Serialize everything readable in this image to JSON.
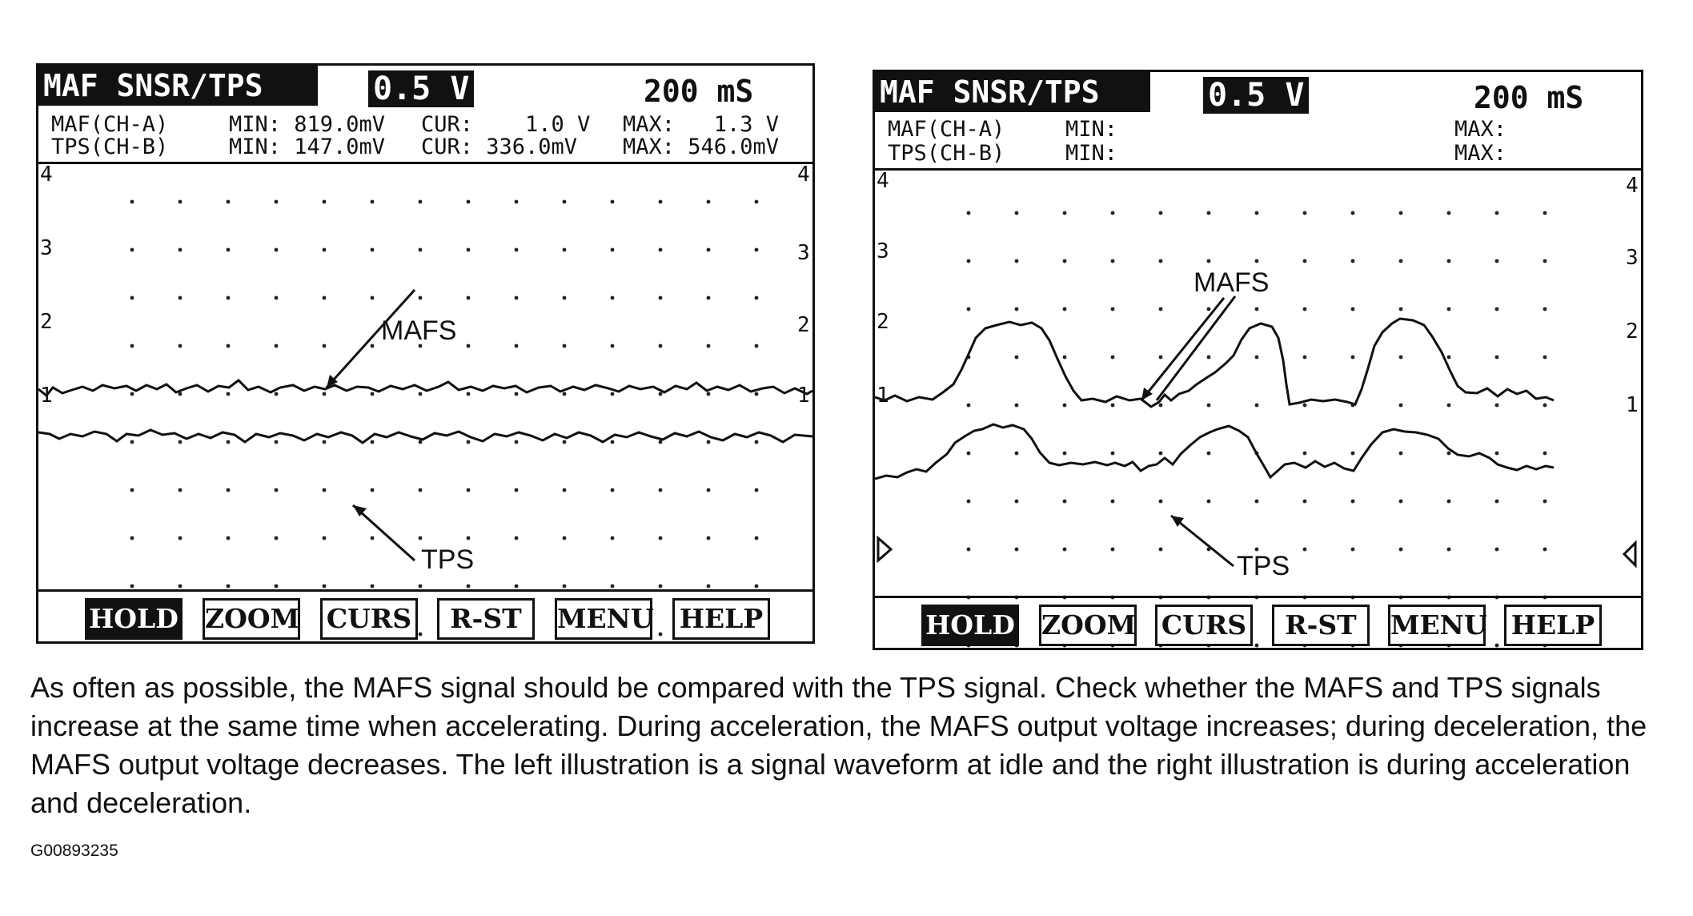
{
  "panels": [
    {
      "title": "MAF SNSR/TPS",
      "range": "0.5 V",
      "timebase": "200 mS",
      "rows": [
        {
          "channel": "MAF(CH-A)",
          "min": "MIN: 819.0mV",
          "cur": "CUR:    1.0 V",
          "max": "MAX:   1.3 V"
        },
        {
          "channel": "TPS(CH-B)",
          "min": "MIN: 147.0mV",
          "cur": "CUR: 336.0mV",
          "max": "MAX: 546.0mV"
        }
      ],
      "left_scale": [
        "4",
        "3",
        "2",
        "1"
      ],
      "right_scale": [
        "4",
        "3",
        "2",
        "1"
      ],
      "label_mafs": "MAFS",
      "label_tps": "TPS",
      "buttons": [
        "HOLD",
        "ZOOM",
        "CURS",
        "R-ST",
        "MENU",
        "HELP"
      ]
    },
    {
      "title": "MAF SNSR/TPS",
      "range": "0.5 V",
      "timebase": "200 mS",
      "rows": [
        {
          "channel": "MAF(CH-A)",
          "min": "MIN:",
          "cur": "",
          "max": "MAX:"
        },
        {
          "channel": "TPS(CH-B)",
          "min": "MIN:",
          "cur": "",
          "max": "MAX:"
        }
      ],
      "left_scale": [
        "4",
        "3",
        "2",
        "1"
      ],
      "right_scale": [
        "4",
        "3",
        "2",
        "1"
      ],
      "label_mafs": "MAFS",
      "label_tps": "TPS",
      "buttons": [
        "HOLD",
        "ZOOM",
        "CURS",
        "R-ST",
        "MENU",
        "HELP"
      ]
    }
  ],
  "caption": "As often as possible, the MAFS signal should be compared with the TPS signal. Check whether the MAFS and TPS signals increase at the same time when accelerating. During acceleration, the MAFS output voltage increases; during deceleration, the MAFS output voltage decreases. The left illustration is a signal waveform at idle and the right illustration is during acceleration and deceleration.",
  "figure_code": "G00893235"
}
